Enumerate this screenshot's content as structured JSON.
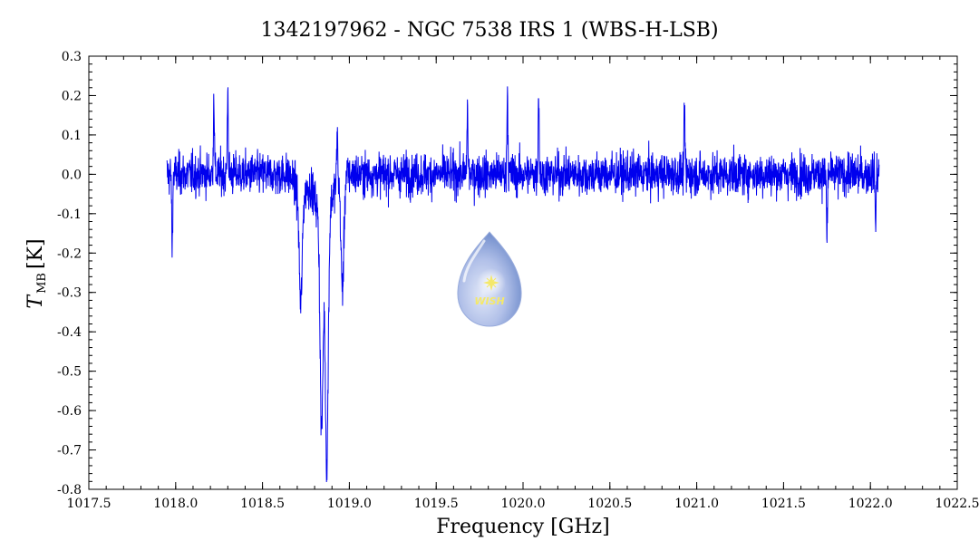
{
  "chart_data": {
    "type": "line",
    "title": "1342197962 - NGC 7538 IRS 1 (WBS-H-LSB)",
    "xlabel": "Frequency [GHz]",
    "ylabel_main": "T",
    "ylabel_sub": "MB",
    "ylabel_unit": "[K]",
    "xlim": [
      1017.5,
      1022.5
    ],
    "ylim": [
      -0.8,
      0.3
    ],
    "x_ticks": [
      "1017.5",
      "1018.0",
      "1018.5",
      "1019.0",
      "1019.5",
      "1020.0",
      "1020.5",
      "1021.0",
      "1021.5",
      "1022.0",
      "1022.5"
    ],
    "y_ticks": [
      "0.3",
      "0.2",
      "0.1",
      "0.0",
      "-0.1",
      "-0.2",
      "-0.3",
      "-0.4",
      "-0.5",
      "-0.6",
      "-0.7",
      "-0.8"
    ],
    "grid": false,
    "series_color": "#0000ee",
    "series": [
      {
        "x_range": [
          1017.95,
          1022.05
        ],
        "baseline": 0.0,
        "features": [
          {
            "x": 1018.72,
            "y": -0.3
          },
          {
            "x": 1018.84,
            "y": -0.6
          },
          {
            "x": 1018.87,
            "y": -0.7
          },
          {
            "x": 1018.96,
            "y": -0.32
          },
          {
            "x": 1018.93,
            "y": 0.15
          },
          {
            "x": 1018.22,
            "y": 0.23
          },
          {
            "x": 1018.3,
            "y": 0.24
          },
          {
            "x": 1019.91,
            "y": 0.25
          },
          {
            "x": 1020.09,
            "y": 0.24
          },
          {
            "x": 1020.93,
            "y": 0.18
          },
          {
            "x": 1019.68,
            "y": 0.19
          },
          {
            "x": 1021.75,
            "y": -0.18
          },
          {
            "x": 1022.03,
            "y": -0.14
          },
          {
            "x": 1017.98,
            "y": -0.21
          }
        ]
      }
    ]
  },
  "logo": {
    "text": "WISH",
    "colors": [
      "#a7b8e6",
      "#5f7fc6",
      "#f4e86a"
    ]
  }
}
